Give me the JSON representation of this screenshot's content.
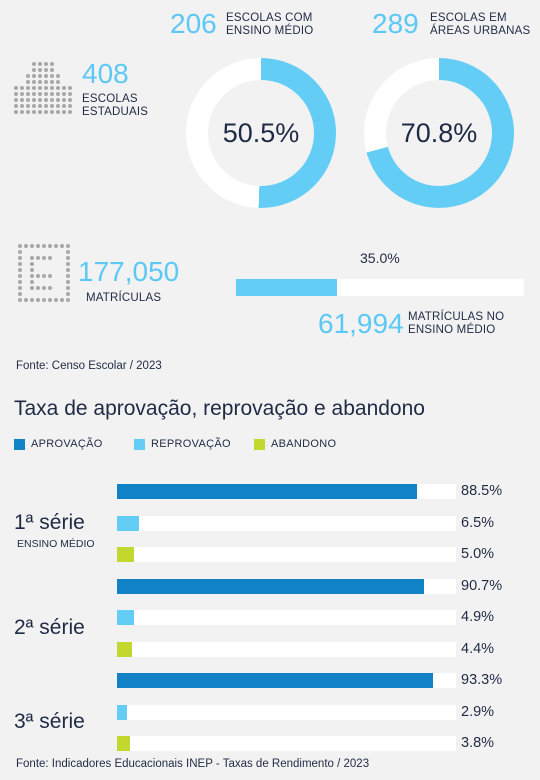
{
  "top": {
    "estaduais": {
      "value": "408",
      "caption_line1": "ESCOLAS",
      "caption_line2": "ESTADUAIS"
    },
    "ensino_medio": {
      "value": "206",
      "caption_line1": "ESCOLAS COM",
      "caption_line2": "ENSINO MÉDIO",
      "percent_label": "50.5%",
      "percent": 50.5
    },
    "urbanas": {
      "value": "289",
      "caption_line1": "ESCOLAS EM",
      "caption_line2": "ÁREAS URBANAS",
      "percent_label": "70.8%",
      "percent": 70.8
    }
  },
  "matriculas": {
    "value": "177,050",
    "caption": "MATRÍCULAS",
    "bar_percent_label": "35.0%",
    "bar_percent": 35.0,
    "ensino_medio_value": "61,994",
    "ensino_medio_caption_line1": "MATRÍCULAS NO",
    "ensino_medio_caption_line2": "ENSINO MÉDIO"
  },
  "source_top": "Fonte: Censo Escolar / 2023",
  "rates": {
    "title": "Taxa de aprovação, reprovação e abandono",
    "legend": [
      {
        "label": "APROVAÇÃO",
        "color": "#1282c6"
      },
      {
        "label": "REPROVAÇÃO",
        "color": "#63cdf6"
      },
      {
        "label": "ABANDONO",
        "color": "#c3d82e"
      }
    ],
    "groups": [
      {
        "label": "1ª série",
        "sublabel": "ENSINO MÉDIO",
        "rows": [
          {
            "value": 88.5,
            "label": "88.5%"
          },
          {
            "value": 6.5,
            "label": "6.5%"
          },
          {
            "value": 5.0,
            "label": "5.0%"
          }
        ]
      },
      {
        "label": "2ª série",
        "sublabel": "",
        "rows": [
          {
            "value": 90.7,
            "label": "90.7%"
          },
          {
            "value": 4.9,
            "label": "4.9%"
          },
          {
            "value": 4.4,
            "label": "4.4%"
          }
        ]
      },
      {
        "label": "3ª série",
        "sublabel": "",
        "rows": [
          {
            "value": 93.3,
            "label": "93.3%"
          },
          {
            "value": 2.9,
            "label": "2.9%"
          },
          {
            "value": 3.8,
            "label": "3.8%"
          }
        ]
      }
    ],
    "source": "Fonte: Indicadores Educacionais INEP - Taxas de Rendimento / 2023"
  },
  "colors": {
    "accent": "#5bc8f5",
    "ring_bg": "#ffffff",
    "text": "#1f2a44"
  },
  "icons": {
    "school": "school-grid-icon",
    "enrollment": "enrollment-grid-icon"
  }
}
